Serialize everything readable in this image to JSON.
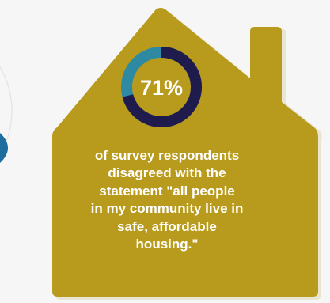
{
  "stat": {
    "value": "71%",
    "fraction": 0.71,
    "caption": "of survey respondents\ndisagreed with the\nstatement \"all people\nin my community live in\nsafe, affordable\nhousing.\""
  },
  "colors": {
    "background": "#f6f6f6",
    "house": "#b89a1d",
    "house_shadow": "#9a8016",
    "ring_fill": "#1f1b4d",
    "ring_remainder": "#2e8aa2",
    "text": "#ffffff",
    "side_accent": "#1d6d9e"
  },
  "icons": {
    "house": "house-icon",
    "donut": "donut-chart-icon"
  }
}
